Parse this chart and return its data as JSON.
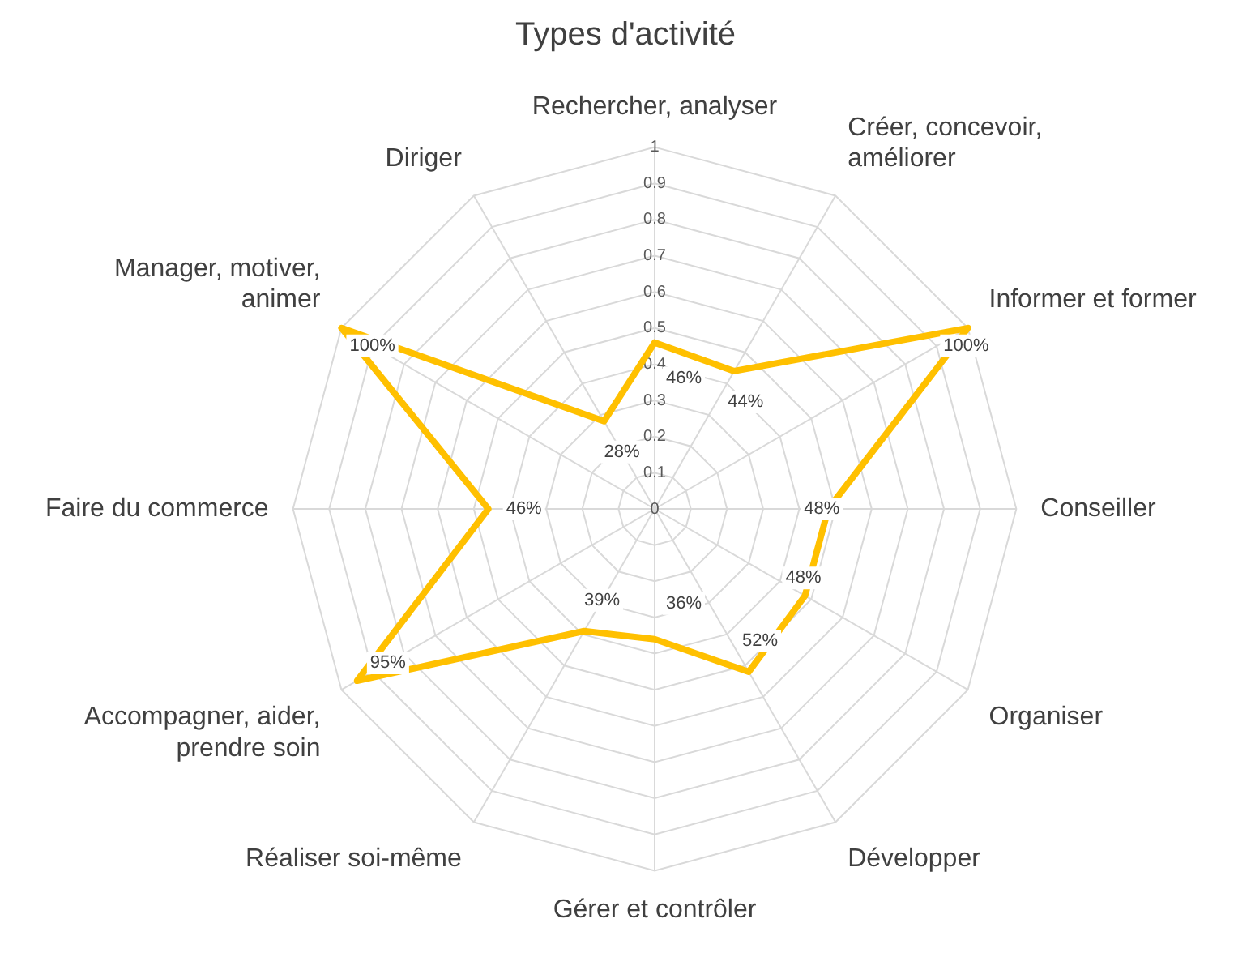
{
  "chart_data": {
    "type": "radar",
    "title": "Types d'activité",
    "categories": [
      "Rechercher, analyser",
      "Créer, concevoir, améliorer",
      "Informer et former",
      "Conseiller",
      "Organiser",
      "Développer",
      "Gérer et contrôler",
      "Réaliser soi-même",
      "Accompagner, aider, prendre soin",
      "Faire du commerce",
      "Manager, motiver, animer",
      "Diriger"
    ],
    "series": [
      {
        "color": "#ffc000",
        "values": [
          0.46,
          0.44,
          1,
          0.48,
          0.48,
          0.52,
          0.36,
          0.39,
          0.95,
          0.46,
          1,
          0.28
        ],
        "value_labels": [
          "46%",
          "44%",
          "100%",
          "48%",
          "48%",
          "52%",
          "36%",
          "39%",
          "95%",
          "46%",
          "100%",
          "28%"
        ]
      }
    ],
    "ylim": [
      0,
      1
    ],
    "yticks": [
      0,
      0.1,
      0.2,
      0.3,
      0.4,
      0.5,
      0.6,
      0.7,
      0.8,
      0.9,
      1
    ],
    "grid": true,
    "legend": false,
    "marker": "none",
    "line_style": "solid"
  }
}
